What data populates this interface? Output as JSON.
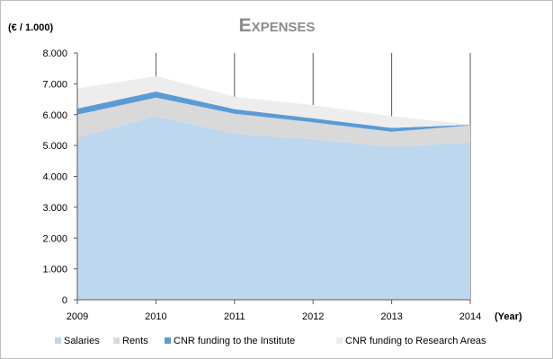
{
  "chart_data": {
    "type": "area",
    "title": "Expenses",
    "ylabel": "(€ / 1.000)",
    "xlabel": "(Year)",
    "x": [
      "2009",
      "2010",
      "2011",
      "2012",
      "2013",
      "2014"
    ],
    "ylim": [
      0,
      8000
    ],
    "yticks": [
      "0",
      "1.000",
      "2.000",
      "3.000",
      "4.000",
      "5.000",
      "6.000",
      "7.000",
      "8.000"
    ],
    "stacked": true,
    "grid": false,
    "legend_position": "bottom",
    "series": [
      {
        "name": "Salaries",
        "color": "#bdd7ee",
        "values": [
          5250,
          5950,
          5380,
          5200,
          4950,
          5100
        ]
      },
      {
        "name": "Rents",
        "color": "#d9d9d9",
        "values": [
          750,
          600,
          650,
          550,
          500,
          550
        ]
      },
      {
        "name": "CNR funding to the Institute",
        "color": "#5b9bd5",
        "values": [
          200,
          200,
          150,
          130,
          120,
          20
        ]
      },
      {
        "name": "CNR funding to Research Areas",
        "color": "#ededed",
        "values": [
          650,
          500,
          400,
          430,
          380,
          10
        ]
      }
    ]
  }
}
